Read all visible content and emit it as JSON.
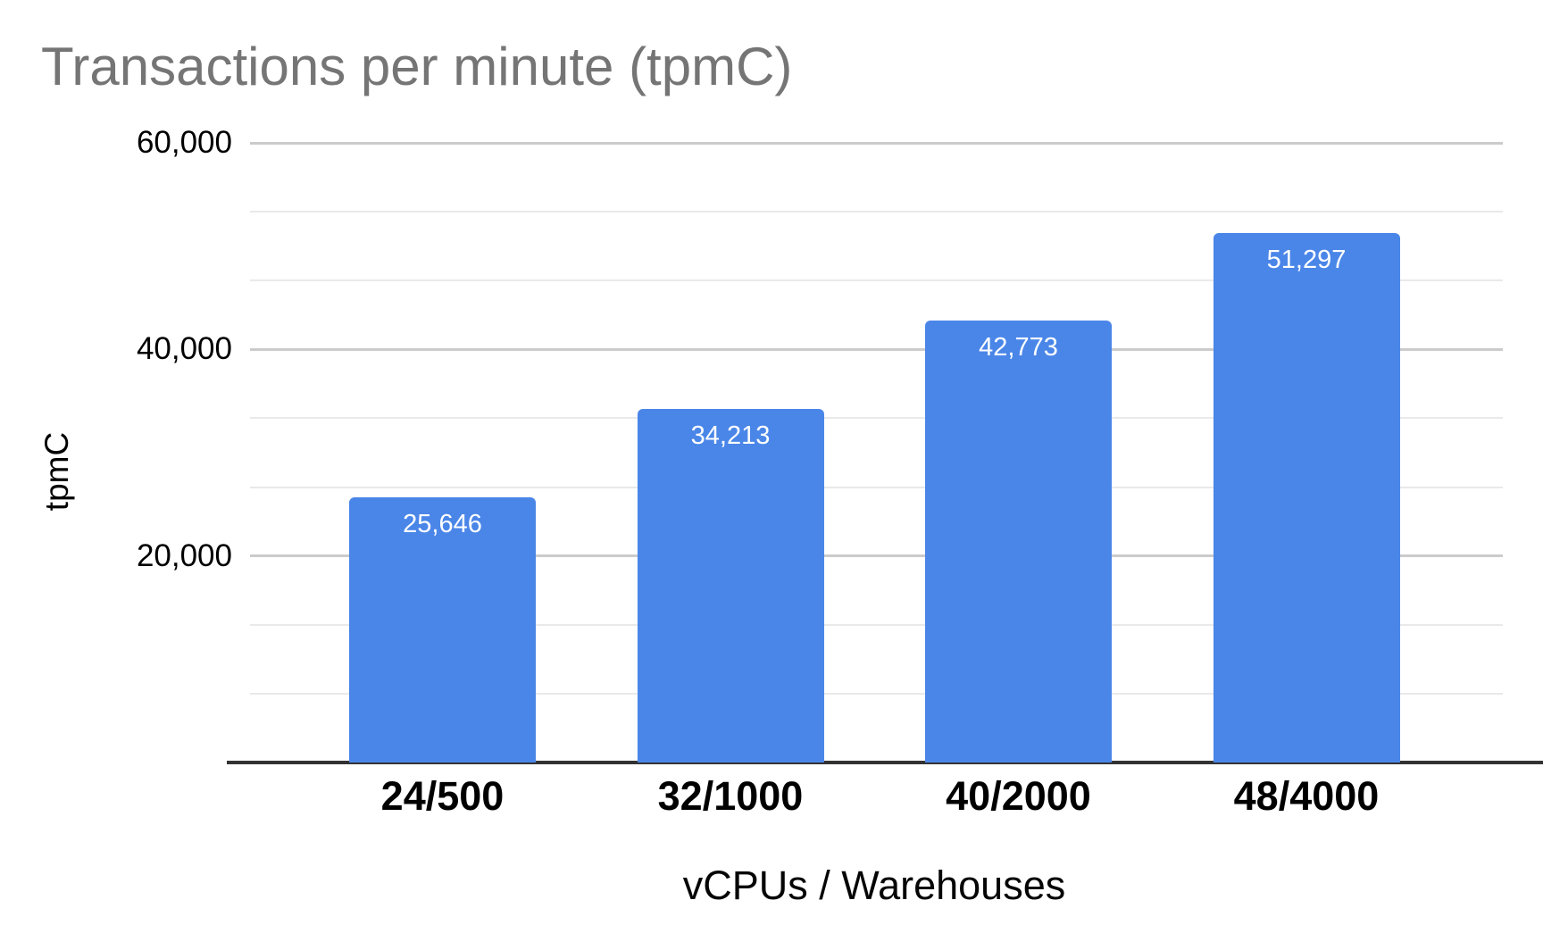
{
  "chart_data": {
    "type": "bar",
    "title": "Transactions per minute (tpmC)",
    "xlabel": "vCPUs / Warehouses",
    "ylabel": "tpmC",
    "categories": [
      "24/500",
      "32/1000",
      "40/2000",
      "48/4000"
    ],
    "values": [
      25646,
      34213,
      42773,
      51297
    ],
    "value_labels": [
      "25,646",
      "34,213",
      "42,773",
      "51,297"
    ],
    "ylim": [
      0,
      60000
    ],
    "yticks": [
      {
        "value": 20000,
        "label": "20,000"
      },
      {
        "value": 40000,
        "label": "40,000"
      },
      {
        "value": 60000,
        "label": "60,000"
      }
    ],
    "major_tick_step": 20000,
    "minor_gridlines_per_major": 2,
    "grid": true,
    "legend_position": "none",
    "colors": {
      "bar": "#4a86e8",
      "title_text": "#757575",
      "tick_text": "#000000",
      "value_label_text": "#ffffff",
      "axis_line": "#333333",
      "major_gridline": "#cbcbcb",
      "minor_gridline": "#e9e9e9"
    }
  }
}
